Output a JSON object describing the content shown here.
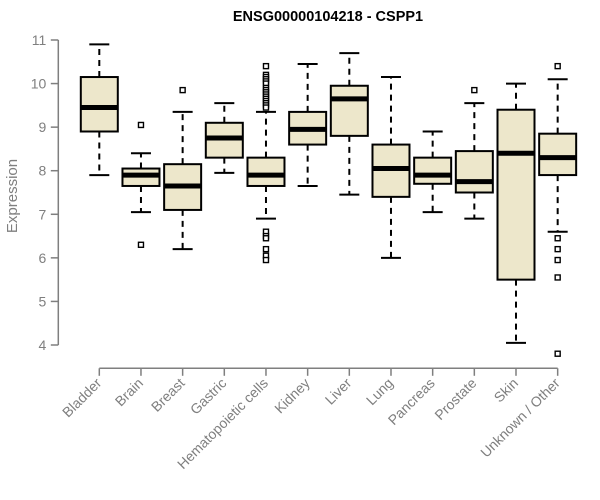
{
  "title": "ENSG00000104218 - CSPP1",
  "colors": {
    "box_fill": "#EDE7CB",
    "box_stroke": "#000000",
    "median": "#000000",
    "whisker": "#000000",
    "outlier_stroke": "#000000",
    "outlier_fill": "#FFFFFF",
    "axis": "#7F7F7F",
    "text_gray": "#7F7F7F",
    "title_color": "#000000",
    "background": "#FFFFFF"
  },
  "chart_data": {
    "type": "boxplot",
    "title": "ENSG00000104218 - CSPP1",
    "xlabel": "",
    "ylabel": "Expression",
    "ylim": [
      4,
      11
    ],
    "y_ticks": [
      4,
      5,
      6,
      7,
      8,
      9,
      10,
      11
    ],
    "grid": false,
    "legend": "none",
    "categories": [
      "Bladder",
      "Brain",
      "Breast",
      "Gastric",
      "Hematopoietic cells",
      "Kidney",
      "Liver",
      "Lung",
      "Pancreas",
      "Prostate",
      "Skin",
      "Unknown / Other"
    ],
    "boxes": [
      {
        "category": "Bladder",
        "whisker_low": 7.9,
        "q1": 8.9,
        "median": 9.45,
        "q3": 10.15,
        "whisker_high": 10.9,
        "outliers": []
      },
      {
        "category": "Brain",
        "whisker_low": 7.05,
        "q1": 7.65,
        "median": 7.9,
        "q3": 8.05,
        "whisker_high": 8.4,
        "outliers": [
          9.05,
          6.3
        ]
      },
      {
        "category": "Breast",
        "whisker_low": 6.2,
        "q1": 7.1,
        "median": 7.65,
        "q3": 8.15,
        "whisker_high": 9.35,
        "outliers": [
          9.85
        ]
      },
      {
        "category": "Gastric",
        "whisker_low": 7.95,
        "q1": 8.3,
        "median": 8.75,
        "q3": 9.1,
        "whisker_high": 9.55,
        "outliers": []
      },
      {
        "category": "Hematopoietic cells",
        "whisker_low": 6.9,
        "q1": 7.65,
        "median": 7.9,
        "q3": 8.3,
        "whisker_high": 9.35,
        "outliers": [
          10.4,
          10.2,
          10.15,
          10.1,
          10.05,
          10.0,
          9.9,
          9.85,
          9.8,
          9.75,
          9.7,
          9.65,
          9.6,
          9.55,
          9.5,
          9.45,
          6.6,
          6.5,
          6.45,
          6.2,
          6.05,
          5.95
        ]
      },
      {
        "category": "Kidney",
        "whisker_low": 7.65,
        "q1": 8.6,
        "median": 8.95,
        "q3": 9.35,
        "whisker_high": 10.45,
        "outliers": []
      },
      {
        "category": "Liver",
        "whisker_low": 7.45,
        "q1": 8.8,
        "median": 9.65,
        "q3": 9.95,
        "whisker_high": 10.7,
        "outliers": []
      },
      {
        "category": "Lung",
        "whisker_low": 6.0,
        "q1": 7.4,
        "median": 8.05,
        "q3": 8.6,
        "whisker_high": 10.15,
        "outliers": []
      },
      {
        "category": "Pancreas",
        "whisker_low": 7.05,
        "q1": 7.7,
        "median": 7.9,
        "q3": 8.3,
        "whisker_high": 8.9,
        "outliers": []
      },
      {
        "category": "Prostate",
        "whisker_low": 6.9,
        "q1": 7.5,
        "median": 7.75,
        "q3": 8.45,
        "whisker_high": 9.55,
        "outliers": [
          9.85
        ]
      },
      {
        "category": "Skin",
        "whisker_low": 4.05,
        "q1": 5.5,
        "median": 8.4,
        "q3": 9.4,
        "whisker_high": 10.0,
        "outliers": []
      },
      {
        "category": "Unknown / Other",
        "whisker_low": 6.6,
        "q1": 7.9,
        "median": 8.3,
        "q3": 8.85,
        "whisker_high": 10.1,
        "outliers": [
          10.4,
          6.45,
          6.2,
          5.95,
          5.55,
          3.8
        ]
      }
    ]
  }
}
